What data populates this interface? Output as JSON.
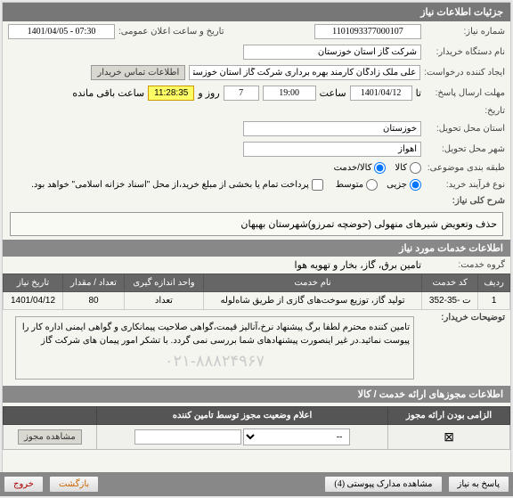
{
  "header": {
    "title": "جزئیات اطلاعات نیاز"
  },
  "fields": {
    "need_no_label": "شماره نیاز:",
    "need_no": "1101093377000107",
    "announce_label": "تاریخ و ساعت اعلان عمومی:",
    "announce_val": "1401/04/05 - 07:30",
    "buyer_label": "نام دستگاه خریدار:",
    "buyer_val": "شرکت گاز استان خوزستان",
    "requester_label": "ایجاد کننده درخواست:",
    "requester_val": "علی ملک زادگان کارمند بهره برداری شرکت گاز استان خوزستان",
    "contact_btn": "اطلاعات تماس خریدار",
    "deadline_label": "مهلت ارسال پاسخ:",
    "deadline_prefix": "تا",
    "deadline_date": "1401/04/12",
    "deadline_time_label": "ساعت",
    "deadline_time": "19:00",
    "days_remaining": "7",
    "days_label": "روز و",
    "countdown": "11:28:35",
    "remaining_label": "ساعت باقی مانده",
    "date_label2": "تاریخ:",
    "province_label": "استان محل تحویل:",
    "province_val": "خوزستان",
    "city_label": "شهر محل تحویل:",
    "city_val": "اهواز",
    "category_label": "طبقه بندی موضوعی:",
    "cat_kala": "کالا",
    "cat_service": "کالا/خدمت",
    "need_type_label": "نوع فرآیند خرید:",
    "type_low": "جزیی",
    "type_mid": "متوسط",
    "pay_note": "پرداخت تمام یا بخشی از مبلغ خرید،از محل \"اسناد خزانه اسلامی\" خواهد بود."
  },
  "desc": {
    "label": "شرح کلی نیاز:",
    "text": "حذف وتعویض شیرهای منهولی (حوضچه تمرزو)شهرستان بهبهان"
  },
  "services_header": "اطلاعات خدمات مورد نیاز",
  "service_group": {
    "label": "گروه خدمت:",
    "val": "تامین برق، گاز، بخار و تهویه هوا"
  },
  "table": {
    "cols": [
      "ردیف",
      "کد خدمت",
      "نام خدمت",
      "واحد اندازه گیری",
      "تعداد / مقدار",
      "تاریخ نیاز"
    ],
    "rows": [
      [
        "1",
        "ت -35-352",
        "تولید گاز، توزیع سوخت‌های گازی از طریق شاه‌لوله‌",
        "تعداد",
        "80",
        "1401/04/12"
      ]
    ]
  },
  "buyer_notes": {
    "label": "توضیحات خریدار:",
    "text": "تامین کننده محترم لطفا برگ پیشنهاد نرخ،آنالیز قیمت،گواهی صلاحیت پیمانکاری و گواهی ایمنی اداره کار را پیوست نمائید.در غیر اینصورت پیشنهادهای شما بررسی نمی گردد.\nبا تشکر امور پیمان های شرکت گاز",
    "watermark": "۰۲۱-۸۸۸۲۴۹۶۷"
  },
  "auth_header": "اطلاعات مجوزهای ارائه خدمت / کالا",
  "auth_table": {
    "cols": [
      "الزامی بودن ارائه مجوز",
      "اعلام وضعیت مجوز توسط تامین کننده",
      ""
    ],
    "select_placeholder": "--",
    "view_btn": "مشاهده مجوز"
  },
  "buttons": {
    "respond": "پاسخ به نیاز",
    "attachments": "مشاهده مدارک پیوستی (4)",
    "back": "بازگشت",
    "exit": "خروج"
  }
}
